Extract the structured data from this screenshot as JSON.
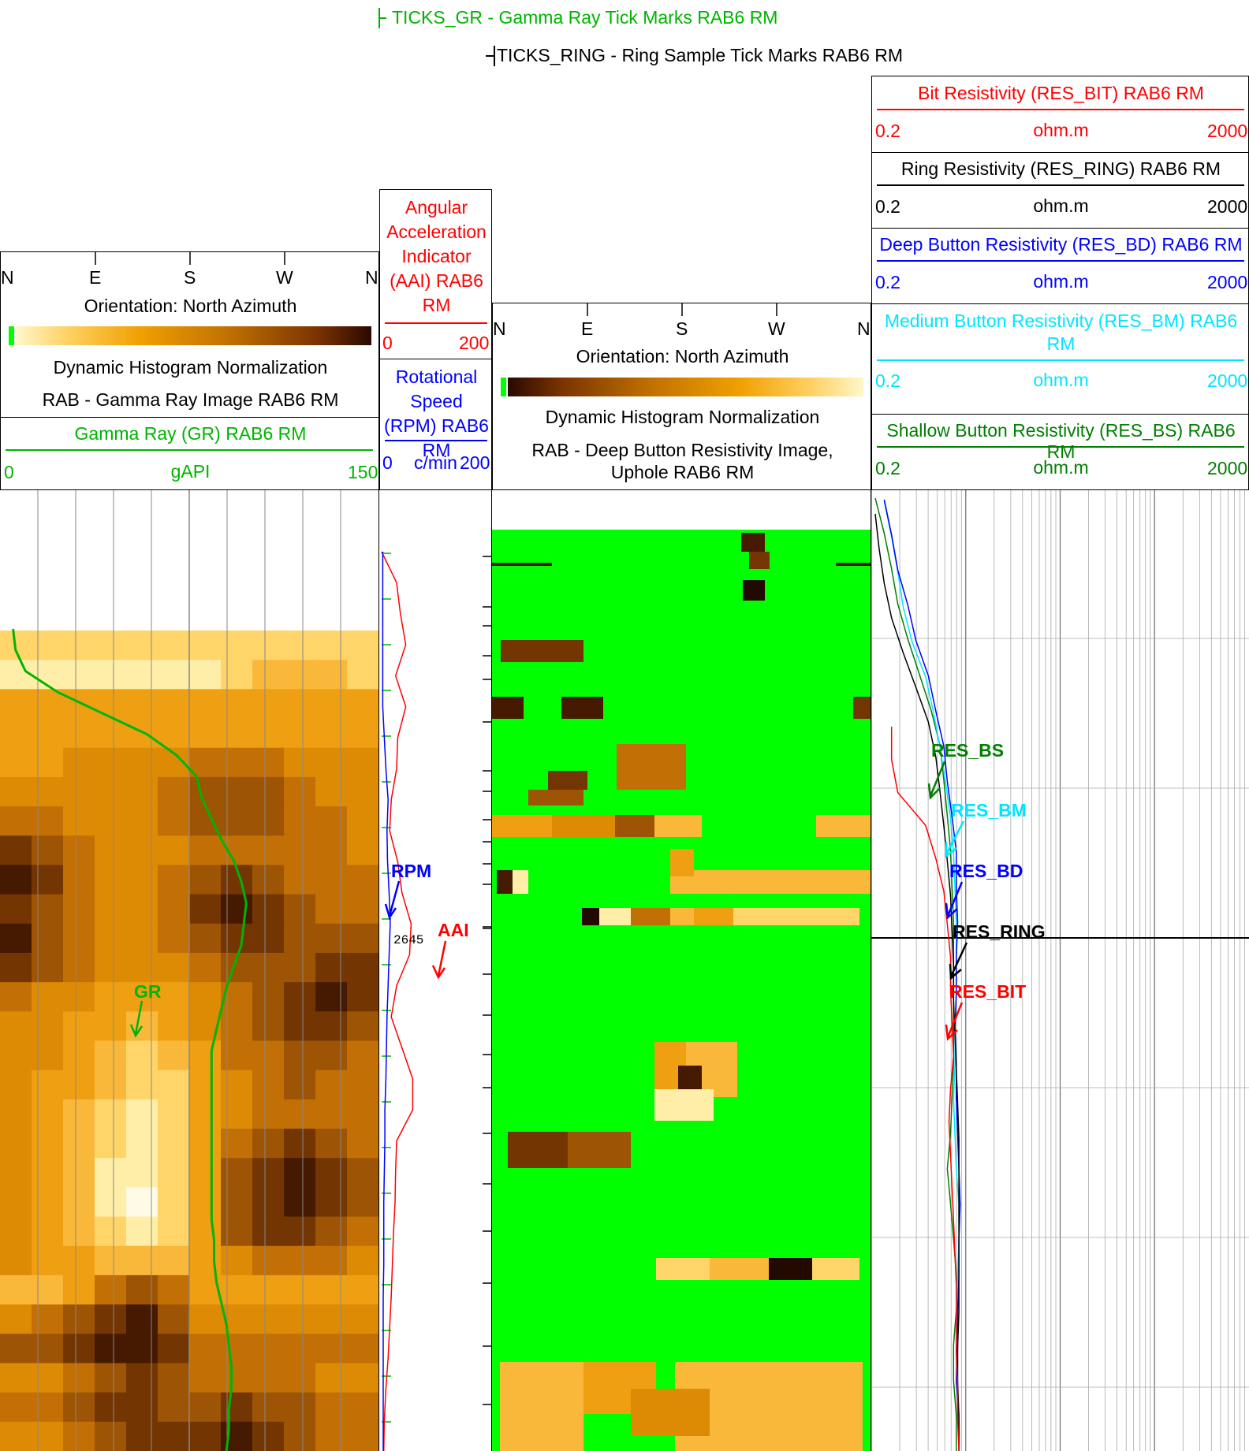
{
  "colors": {
    "gr": "#00b400",
    "aai": "#ff0000",
    "rpm": "#0000ff",
    "res_bit": "#ff0000",
    "res_ring": "#000000",
    "res_bd": "#0000ff",
    "res_bm": "#00e5ff",
    "res_bs": "#007f00",
    "mask_green": "#00ff00"
  },
  "ticks_header": {
    "gr": "TICKS_GR - Gamma Ray Tick Marks RAB6 RM",
    "ring": "TICKS_RING - Ring Sample Tick Marks RAB6 RM"
  },
  "track1": {
    "compass": [
      "N",
      "E",
      "S",
      "W",
      "N"
    ],
    "orientation": "Orientation: North Azimuth",
    "normalization": "Dynamic Histogram Normalization",
    "image_title": "RAB - Gamma Ray Image RAB6 RM",
    "curve": {
      "title": "Gamma Ray (GR) RAB6 RM",
      "min": "0",
      "unit": "gAPI",
      "max": "150"
    }
  },
  "track2": {
    "aai": {
      "title": "Angular Acceleration Indicator (AAI) RAB6 RM",
      "min": "0",
      "max": "200"
    },
    "rpm": {
      "title": "Rotational Speed (RPM) RAB6 RM",
      "min": "0",
      "unit": "c/min",
      "max": "200"
    },
    "depth_label": "2645"
  },
  "track3": {
    "compass": [
      "N",
      "E",
      "S",
      "W",
      "N"
    ],
    "orientation": "Orientation: North Azimuth",
    "normalization": "Dynamic Histogram Normalization",
    "image_title": "RAB - Deep Button Resistivity Image, Uphole RAB6 RM"
  },
  "track4": {
    "curves": [
      {
        "key": "res_bit",
        "title": "Bit Resistivity (RES_BIT) RAB6 RM",
        "min": "0.2",
        "unit": "ohm.m",
        "max": "2000"
      },
      {
        "key": "res_ring",
        "title": "Ring Resistivity (RES_RING) RAB6 RM",
        "min": "0.2",
        "unit": "ohm.m",
        "max": "2000"
      },
      {
        "key": "res_bd",
        "title": "Deep Button Resistivity (RES_BD) RAB6 RM",
        "min": "0.2",
        "unit": "ohm.m",
        "max": "2000"
      },
      {
        "key": "res_bm",
        "title": "Medium Button Resistivity (RES_BM) RAB6 RM",
        "min": "0.2",
        "unit": "ohm.m",
        "max": "2000"
      },
      {
        "key": "res_bs",
        "title": "Shallow Button Resistivity (RES_BS) RAB6 RM",
        "min": "0.2",
        "unit": "ohm.m",
        "max": "2000"
      }
    ]
  },
  "curve_labels": {
    "gr": "GR",
    "rpm": "RPM",
    "aai": "AAI",
    "res_bs": "RES_BS",
    "res_bm": "RES_BM",
    "res_bd": "RES_BD",
    "res_ring": "RES_RING",
    "res_bit": "RES_BIT"
  },
  "chart_data": {
    "type": "line",
    "y_axis": "depth",
    "y_marker": 2645,
    "series": [
      {
        "name": "GR",
        "scale": [
          0,
          150
        ],
        "xscale": "linear",
        "values": [
          4,
          5,
          9,
          22,
          40,
          58,
          70,
          78,
          80,
          84,
          88,
          93,
          96,
          98,
          97,
          96,
          93,
          90,
          88,
          86,
          84,
          84,
          84,
          84,
          84,
          84,
          84,
          84,
          84,
          85,
          85,
          86,
          88,
          90,
          91,
          92,
          92,
          91,
          91,
          90
        ]
      },
      {
        "name": "AAI",
        "scale": [
          0,
          200
        ],
        "values": [
          0,
          28,
          35,
          45,
          26,
          45,
          30,
          28,
          18,
          15,
          30,
          38,
          55,
          52,
          28,
          18,
          38,
          58,
          58,
          28,
          26,
          25,
          22,
          20,
          18,
          15,
          12,
          8,
          5,
          4
        ]
      },
      {
        "name": "RPM",
        "scale": [
          0,
          200
        ],
        "values": [
          2,
          2,
          2,
          2,
          2,
          2,
          5,
          8,
          12,
          10,
          11,
          14,
          16,
          14,
          12,
          10,
          9,
          8,
          6,
          6,
          5,
          4,
          4,
          4,
          3,
          3,
          3,
          3,
          3,
          3
        ]
      },
      {
        "name": "RES_BS",
        "scale": [
          0.2,
          2000
        ],
        "xscale": "log",
        "values": [
          0.2,
          0.25,
          0.3,
          0.35,
          0.45,
          0.6,
          0.8,
          1.0,
          1.1,
          1.2,
          1.3,
          1.35,
          1.4,
          1.4,
          1.4,
          1.4,
          1.4,
          1.35,
          1.3,
          1.2,
          1.3,
          1.4,
          1.5,
          1.5,
          1.4,
          1.4,
          1.5,
          1.5
        ]
      },
      {
        "name": "RES_BM",
        "scale": [
          0.2,
          2000
        ],
        "xscale": "log",
        "values": [
          0.25,
          0.3,
          0.35,
          0.4,
          0.5,
          0.7,
          0.85,
          1.0,
          1.15,
          1.3,
          1.4,
          1.45,
          1.5,
          1.5,
          1.5,
          1.45,
          1.45,
          1.4,
          1.45,
          1.5,
          1.6,
          1.6,
          1.55,
          1.5,
          1.5,
          1.5,
          1.6,
          1.6
        ]
      },
      {
        "name": "RES_BD",
        "scale": [
          0.2,
          2000
        ],
        "xscale": "log",
        "values": [
          0.25,
          0.3,
          0.35,
          0.45,
          0.55,
          0.75,
          0.9,
          1.1,
          1.2,
          1.35,
          1.5,
          1.5,
          1.55,
          1.5,
          1.5,
          1.45,
          1.5,
          1.5,
          1.55,
          1.6,
          1.65,
          1.6,
          1.6,
          1.55,
          1.55,
          1.5,
          1.6,
          1.6
        ]
      },
      {
        "name": "RES_RING",
        "scale": [
          0.2,
          2000
        ],
        "xscale": "log",
        "values": [
          0.2,
          0.22,
          0.25,
          0.3,
          0.4,
          0.55,
          0.75,
          0.9,
          1.0,
          1.1,
          1.2,
          1.3,
          1.35,
          1.4,
          1.4,
          1.45,
          1.5,
          1.55,
          1.6,
          1.6,
          1.6,
          1.6,
          1.6,
          1.6,
          1.55,
          1.55,
          1.6,
          1.6
        ]
      },
      {
        "name": "RES_BIT",
        "scale": [
          0.2,
          2000
        ],
        "xscale": "log",
        "values": [
          0.3,
          0.3,
          0.35,
          0.7,
          0.9,
          1.1,
          1.2,
          1.3,
          1.3,
          1.35,
          1.4,
          1.3,
          1.25,
          1.3,
          1.35,
          1.4,
          1.45,
          1.5,
          1.5,
          1.5,
          1.55,
          1.55,
          1.6
        ]
      }
    ]
  }
}
